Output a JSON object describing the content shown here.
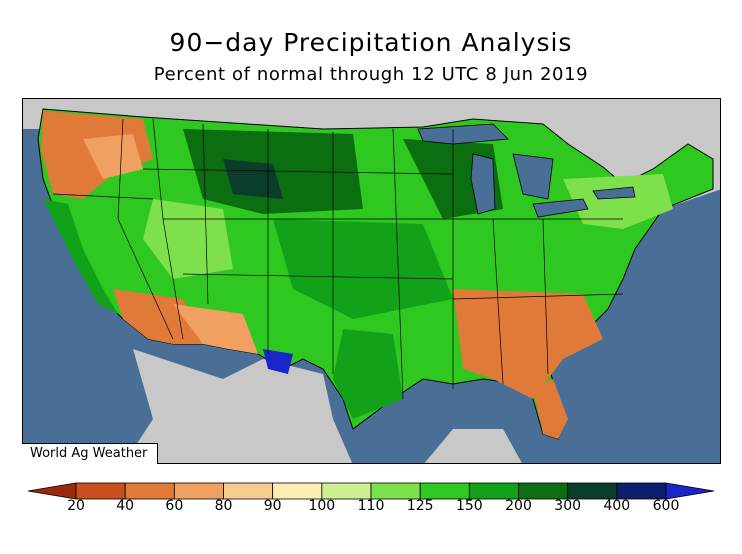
{
  "title": "90−day Precipitation Analysis",
  "subtitle": "Percent of normal through 12 UTC 8 Jun 2019",
  "credit": "World Ag Weather",
  "colors": {
    "ocean": "#4a6f96",
    "foreign_land": "#c8c8c8",
    "lakes": "#4a6f96",
    "boundaries": "#000000"
  },
  "legend": {
    "labels": [
      "20",
      "40",
      "60",
      "80",
      "90",
      "100",
      "110",
      "125",
      "150",
      "200",
      "300",
      "400",
      "600"
    ],
    "colors": [
      "#9a2a0a",
      "#c8501e",
      "#e07a38",
      "#f0a060",
      "#f7cc90",
      "#fbeeb0",
      "#ccf090",
      "#7ee04a",
      "#2ec820",
      "#12a21a",
      "#0b6e10",
      "#0a3d2a",
      "#0c1e6e",
      "#1a26c8"
    ]
  },
  "regions": [
    {
      "name": "pacific-northwest-dry",
      "category": "60-80"
    },
    {
      "name": "california-coast-wet",
      "category": "150-200"
    },
    {
      "name": "desert-southwest-dry",
      "category": "60-90"
    },
    {
      "name": "great-basin-wet",
      "category": "125-150"
    },
    {
      "name": "northern-plains-wet",
      "category": "200-300"
    },
    {
      "name": "central-plains-wet",
      "category": "150-200"
    },
    {
      "name": "midwest-wet",
      "category": "150-200"
    },
    {
      "name": "southeast-dry",
      "category": "60-80"
    },
    {
      "name": "florida-dry",
      "category": "60-80"
    },
    {
      "name": "northeast-wet",
      "category": "125-150"
    }
  ]
}
